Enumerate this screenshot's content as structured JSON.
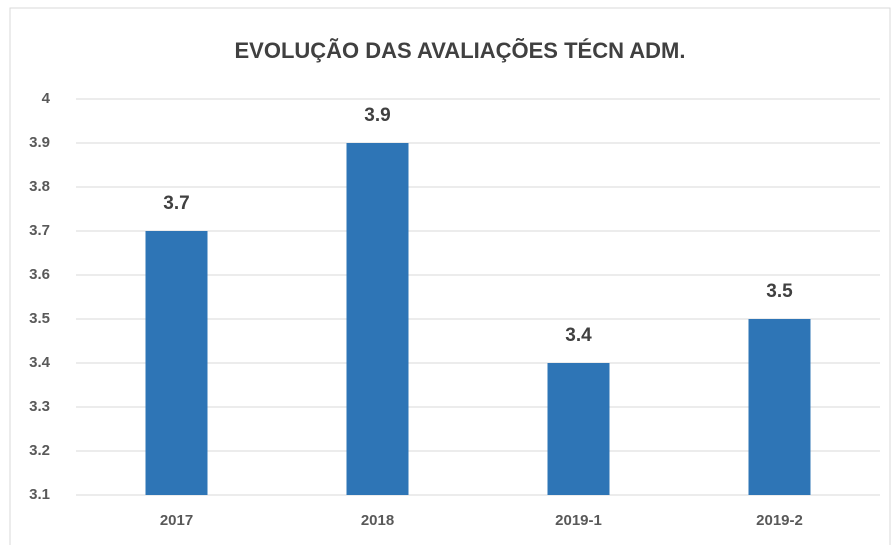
{
  "chart_data": {
    "type": "bar",
    "title": "EVOLUÇÃO DAS AVALIAÇÕES TÉCN ADM.",
    "categories": [
      "2017",
      "2018",
      "2019-1",
      "2019-2"
    ],
    "values": [
      3.7,
      3.9,
      3.4,
      3.5
    ],
    "color": "#2e75b6",
    "ylim": [
      3.1,
      4
    ],
    "yticks": [
      3.1,
      3.2,
      3.3,
      3.4,
      3.5,
      3.6,
      3.7,
      3.8,
      3.9,
      4
    ],
    "grid": true
  }
}
